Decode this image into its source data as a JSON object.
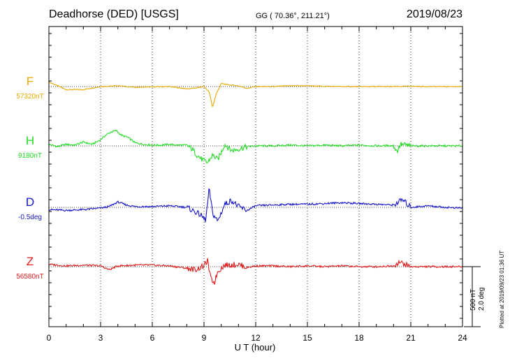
{
  "header": {
    "station": "Deadhorse (DED)  [USGS]",
    "coords": "GG ( 70.36°, 211.21°)",
    "date": "2019/08/23"
  },
  "footer": {
    "plotted": "Plotted at 2019/09/23 01:36 UT"
  },
  "chart_data": {
    "type": "line",
    "xlabel": "U T (hour)",
    "xlim": [
      0,
      24
    ],
    "xticks": [
      "0",
      "3",
      "6",
      "9",
      "12",
      "15",
      "18",
      "21",
      "24"
    ],
    "grid": true,
    "scale_labels": [
      "500 nT",
      "2.0 deg"
    ],
    "series": [
      {
        "name": "F",
        "baseline_label": "57320nT",
        "color": "#e8a800",
        "keypoints": [
          [
            0,
            0.3
          ],
          [
            1,
            -0.2
          ],
          [
            2,
            -0.2
          ],
          [
            3,
            0
          ],
          [
            4,
            0.05
          ],
          [
            5,
            -0.05
          ],
          [
            6,
            -0.02
          ],
          [
            7,
            0
          ],
          [
            8,
            -0.15
          ],
          [
            8.5,
            -0.1
          ],
          [
            9,
            0
          ],
          [
            9.3,
            -0.35
          ],
          [
            9.5,
            -1.35
          ],
          [
            9.7,
            -0.5
          ],
          [
            10,
            0.2
          ],
          [
            10.5,
            0.1
          ],
          [
            11,
            0.05
          ],
          [
            11.5,
            -0.12
          ],
          [
            12,
            0
          ],
          [
            13,
            0
          ],
          [
            14,
            0.05
          ],
          [
            15,
            0.05
          ],
          [
            16,
            0.02
          ],
          [
            17,
            0
          ],
          [
            18,
            0
          ],
          [
            19,
            0
          ],
          [
            20,
            0
          ],
          [
            21,
            0.02
          ],
          [
            22,
            0
          ],
          [
            23,
            0
          ],
          [
            24,
            0
          ]
        ]
      },
      {
        "name": "H",
        "baseline_label": "9180nT",
        "color": "#22dd22",
        "keypoints": [
          [
            0,
            0.1
          ],
          [
            0.5,
            -0.05
          ],
          [
            1,
            0.1
          ],
          [
            1.5,
            0.05
          ],
          [
            2,
            0.25
          ],
          [
            2.5,
            0.1
          ],
          [
            3,
            0.4
          ],
          [
            3.3,
            0.7
          ],
          [
            3.6,
            0.9
          ],
          [
            3.9,
            1.0
          ],
          [
            4.2,
            0.7
          ],
          [
            4.6,
            0.55
          ],
          [
            5,
            0.2
          ],
          [
            5.5,
            0.1
          ],
          [
            6,
            0.05
          ],
          [
            6.5,
            0.05
          ],
          [
            7,
            0.1
          ],
          [
            7.5,
            0.05
          ],
          [
            8,
            0.05
          ],
          [
            8.3,
            -0.2
          ],
          [
            8.6,
            -0.6
          ],
          [
            8.9,
            -0.9
          ],
          [
            9.2,
            -1.1
          ],
          [
            9.5,
            -0.6
          ],
          [
            9.8,
            -0.9
          ],
          [
            10.2,
            0.1
          ],
          [
            10.6,
            -0.3
          ],
          [
            11,
            -0.2
          ],
          [
            11.5,
            -0.05
          ],
          [
            12,
            0
          ],
          [
            13,
            0
          ],
          [
            14,
            0.05
          ],
          [
            15,
            0
          ],
          [
            16,
            0.05
          ],
          [
            17,
            0
          ],
          [
            18,
            0.05
          ],
          [
            19,
            0
          ],
          [
            20,
            0.02
          ],
          [
            20.2,
            -0.35
          ],
          [
            20.4,
            0.1
          ],
          [
            21,
            0
          ],
          [
            22,
            0
          ],
          [
            23,
            0
          ],
          [
            24,
            0
          ]
        ]
      },
      {
        "name": "D",
        "baseline_label": "-0.5deg",
        "color": "#1414cc",
        "keypoints": [
          [
            0,
            -0.15
          ],
          [
            1,
            -0.2
          ],
          [
            2,
            -0.15
          ],
          [
            3,
            -0.05
          ],
          [
            3.5,
            0.05
          ],
          [
            4,
            0.35
          ],
          [
            4.5,
            0.15
          ],
          [
            5,
            0.05
          ],
          [
            6,
            0.05
          ],
          [
            7,
            0.1
          ],
          [
            8,
            0
          ],
          [
            8.5,
            -0.3
          ],
          [
            8.8,
            -0.5
          ],
          [
            9.1,
            -0.85
          ],
          [
            9.3,
            1.2
          ],
          [
            9.5,
            -0.4
          ],
          [
            9.8,
            -0.9
          ],
          [
            10.2,
            0.2
          ],
          [
            10.6,
            0.45
          ],
          [
            11,
            0.05
          ],
          [
            11.5,
            -0.2
          ],
          [
            12,
            0.1
          ],
          [
            13,
            0.15
          ],
          [
            14,
            0.2
          ],
          [
            15,
            0.2
          ],
          [
            16,
            0.25
          ],
          [
            17,
            0.3
          ],
          [
            18,
            0.25
          ],
          [
            19,
            0.2
          ],
          [
            20,
            0.15
          ],
          [
            20.5,
            0.5
          ],
          [
            21,
            0
          ],
          [
            22,
            0.1
          ],
          [
            23,
            0
          ],
          [
            24,
            -0.05
          ]
        ]
      },
      {
        "name": "Z",
        "baseline_label": "56580nT",
        "color": "#e01818",
        "keypoints": [
          [
            0,
            0.15
          ],
          [
            1,
            0.05
          ],
          [
            2,
            0.1
          ],
          [
            3,
            0.05
          ],
          [
            3.5,
            -0.2
          ],
          [
            4,
            0.05
          ],
          [
            5,
            0.1
          ],
          [
            6,
            0.1
          ],
          [
            7,
            0.05
          ],
          [
            8,
            -0.1
          ],
          [
            8.5,
            -0.2
          ],
          [
            9,
            0.05
          ],
          [
            9.2,
            0.4
          ],
          [
            9.4,
            -0.8
          ],
          [
            9.6,
            -1.05
          ],
          [
            9.8,
            -0.3
          ],
          [
            10.2,
            0.1
          ],
          [
            11,
            0.15
          ],
          [
            11.5,
            -0.05
          ],
          [
            12,
            0.05
          ],
          [
            13,
            0.05
          ],
          [
            14,
            0
          ],
          [
            15,
            0.05
          ],
          [
            16,
            0
          ],
          [
            17,
            0.05
          ],
          [
            18,
            0
          ],
          [
            19,
            0
          ],
          [
            20,
            0.05
          ],
          [
            20.3,
            0.3
          ],
          [
            21,
            0
          ],
          [
            22,
            0
          ],
          [
            23,
            0
          ],
          [
            24,
            0
          ]
        ]
      }
    ]
  }
}
